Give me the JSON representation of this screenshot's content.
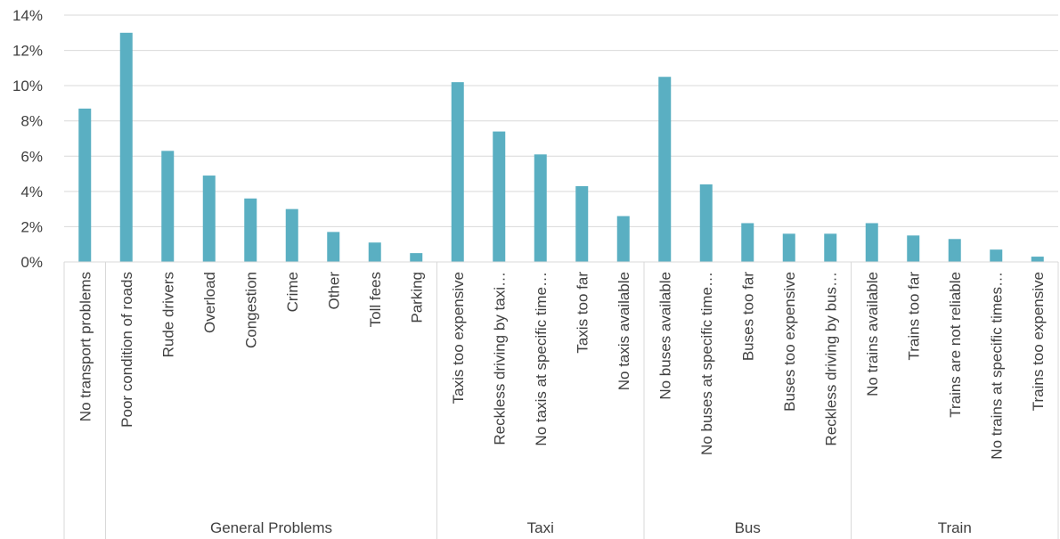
{
  "chart_data": {
    "type": "bar",
    "title": "",
    "xlabel": "",
    "ylabel": "",
    "ylim": [
      0,
      14
    ],
    "y_ticks": [
      "0%",
      "2%",
      "4%",
      "6%",
      "8%",
      "10%",
      "12%",
      "14%"
    ],
    "grid": true,
    "legend": "none",
    "bar_color": "#5aafc2",
    "categories": [
      "No transport problems",
      "Poor condition of roads",
      "Rude drivers",
      "Overload",
      "Congestion",
      "Crime",
      "Other",
      "Toll fees",
      "Parking",
      "Taxis too expensive",
      "Reckless driving by taxi…",
      "No taxis at specific time…",
      "Taxis too far",
      "No taxis available",
      "No buses available",
      "No buses at specific time…",
      "Buses too far",
      "Buses too expensive",
      "Reckless driving by bus…",
      "No trains available",
      "Trains too far",
      "Trains are not reliable",
      "No trains at specific times…",
      "Trains too expensive"
    ],
    "values": [
      8.7,
      13.0,
      6.3,
      4.9,
      3.6,
      3.0,
      1.7,
      1.1,
      0.5,
      10.2,
      7.4,
      6.1,
      4.3,
      2.6,
      10.5,
      4.4,
      2.2,
      1.6,
      1.6,
      2.2,
      1.5,
      1.3,
      0.7,
      0.3
    ],
    "groups": [
      {
        "name": "",
        "start": 0,
        "end": 0
      },
      {
        "name": "General Problems",
        "start": 1,
        "end": 8
      },
      {
        "name": "Taxi",
        "start": 9,
        "end": 13
      },
      {
        "name": "Bus",
        "start": 14,
        "end": 18
      },
      {
        "name": "Train",
        "start": 19,
        "end": 23
      }
    ]
  }
}
